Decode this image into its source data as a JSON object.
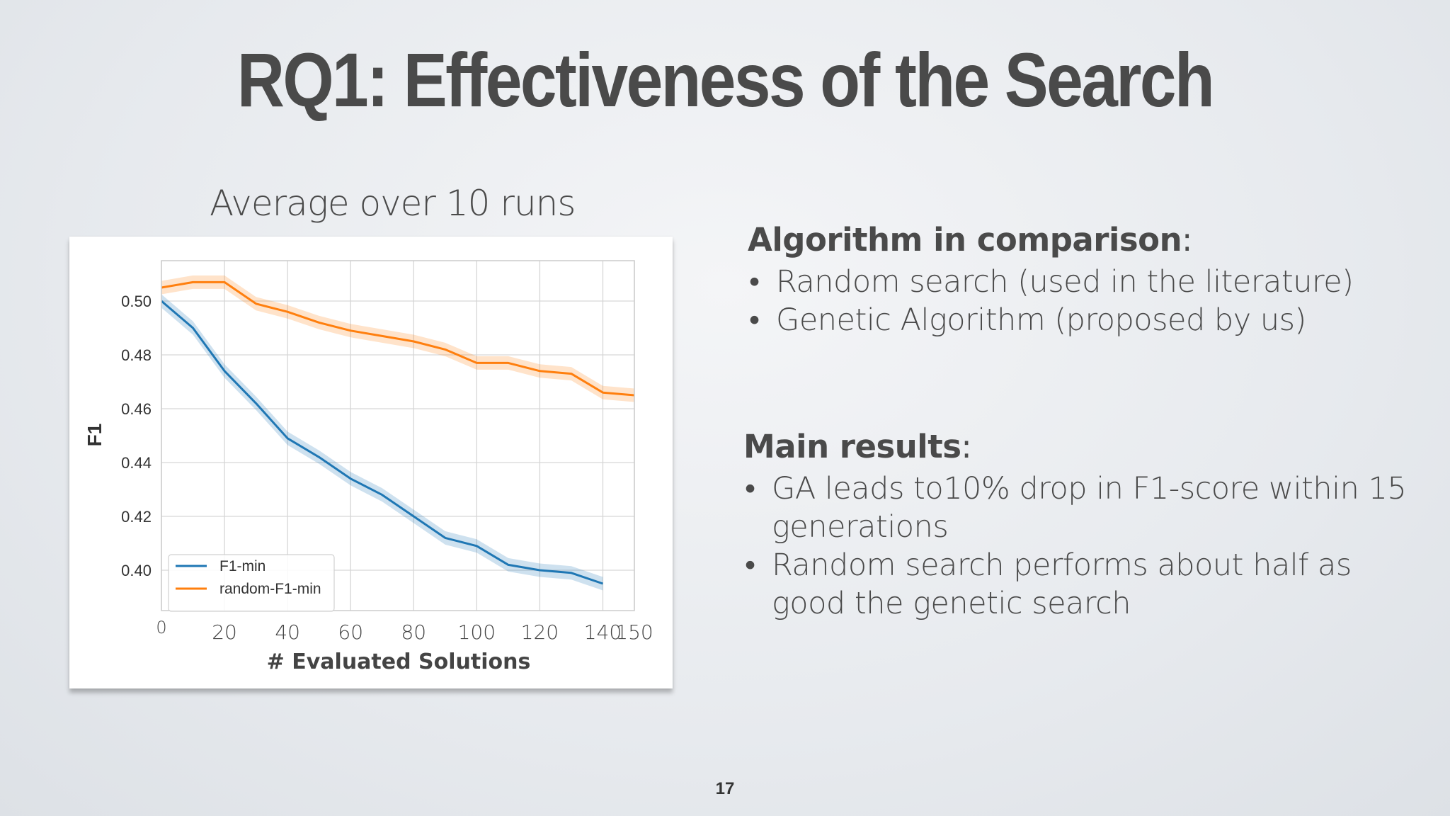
{
  "slide": {
    "title": "RQ1: Effectiveness of the Search",
    "page_number": "17"
  },
  "chart_caption": "Average over 10 runs",
  "comparison": {
    "heading": "Algorithm in comparison",
    "colon": ":",
    "items": [
      "Random search (used in the literature)",
      "Genetic Algorithm (proposed by us)"
    ]
  },
  "results": {
    "heading": "Main results",
    "colon": ":",
    "items": [
      "GA leads to10% drop in F1-score within 15 generations",
      "Random search performs about half as good the genetic search"
    ]
  },
  "colors": {
    "f1_min": "#1f77b4",
    "random_f1_min": "#ff7f0e"
  },
  "chart_data": {
    "type": "line",
    "title": "",
    "xlabel": "# Evaluated Solutions",
    "ylabel": "F1",
    "xlim": [
      0,
      150
    ],
    "ylim": [
      0.385,
      0.515
    ],
    "x_ticks": [
      0,
      20,
      40,
      60,
      80,
      100,
      120,
      140,
      150
    ],
    "y_ticks": [
      0.4,
      0.42,
      0.44,
      0.46,
      0.48,
      0.5
    ],
    "y_tick_labels": [
      "0.40",
      "0.42",
      "0.44",
      "0.46",
      "0.48",
      "0.50"
    ],
    "grid": true,
    "legend_position": "lower-left",
    "series": [
      {
        "name": "F1-min",
        "color": "#1f77b4",
        "x": [
          0,
          10,
          20,
          30,
          40,
          50,
          60,
          70,
          80,
          90,
          100,
          110,
          120,
          130,
          140
        ],
        "values": [
          0.5,
          0.49,
          0.474,
          0.462,
          0.449,
          0.442,
          0.434,
          0.428,
          0.42,
          0.412,
          0.409,
          0.402,
          0.4,
          0.399,
          0.395
        ],
        "band": 0.0025
      },
      {
        "name": "random-F1-min",
        "color": "#ff7f0e",
        "x": [
          0,
          10,
          20,
          30,
          40,
          50,
          60,
          70,
          80,
          90,
          100,
          110,
          120,
          130,
          140,
          150
        ],
        "values": [
          0.505,
          0.507,
          0.507,
          0.499,
          0.496,
          0.492,
          0.489,
          0.487,
          0.485,
          0.482,
          0.477,
          0.477,
          0.474,
          0.473,
          0.466,
          0.465
        ],
        "band": 0.0025
      }
    ]
  }
}
